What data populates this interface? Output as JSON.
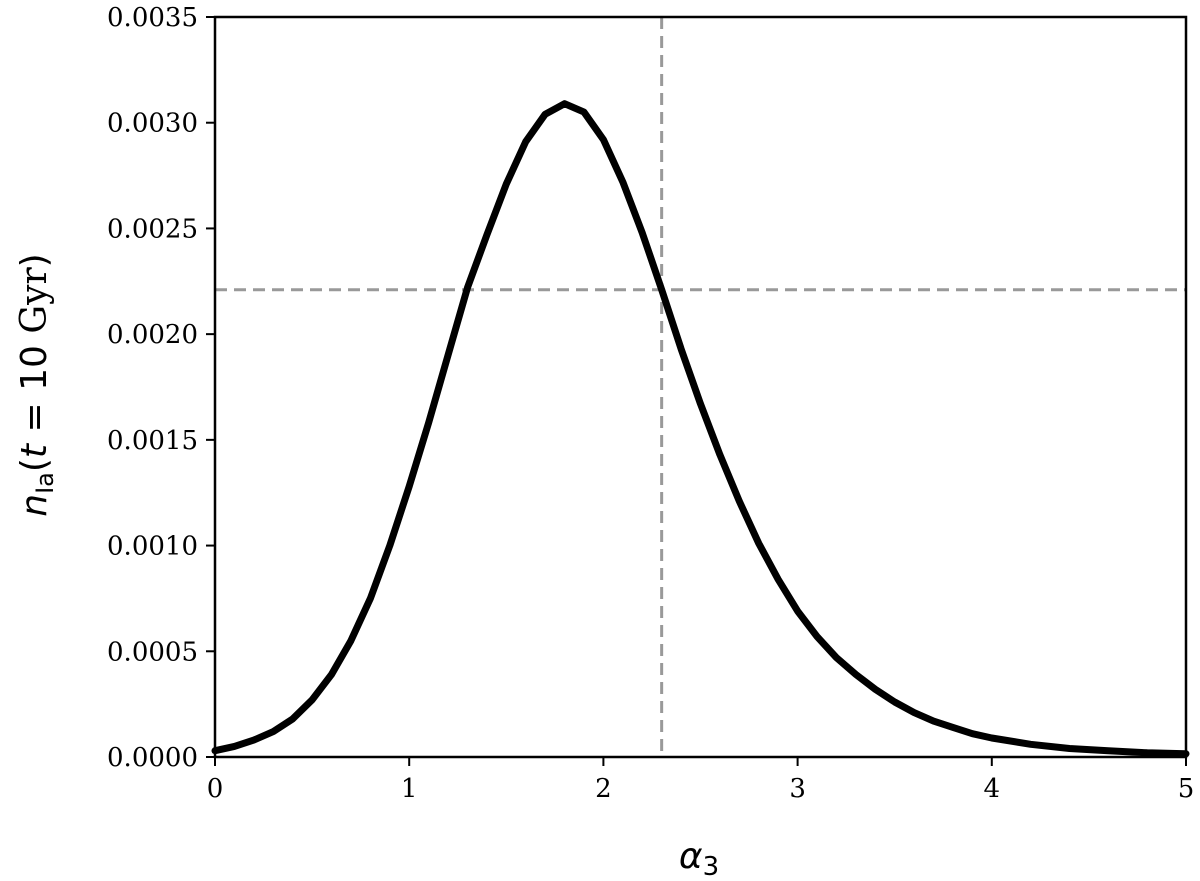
{
  "chart_data": {
    "type": "line",
    "title": "",
    "xlabel": {
      "base": "α",
      "sub": "3"
    },
    "ylabel": {
      "var": "n",
      "sub": "Ia",
      "open": "(",
      "t": "t",
      "eq": " = 10 ",
      "unit": "Gyr",
      "close": ")"
    },
    "xlim": [
      0,
      5
    ],
    "ylim": [
      0,
      0.0035
    ],
    "xticks": [
      0,
      1,
      2,
      3,
      4,
      5
    ],
    "xtick_labels": [
      "0",
      "1",
      "2",
      "3",
      "4",
      "5"
    ],
    "yticks": [
      0,
      0.0005,
      0.001,
      0.0015,
      0.002,
      0.0025,
      0.003,
      0.0035
    ],
    "ytick_labels": [
      "0.0000",
      "0.0005",
      "0.0010",
      "0.0015",
      "0.0020",
      "0.0025",
      "0.0030",
      "0.0035"
    ],
    "grid": false,
    "line_color": "#000000",
    "ref_color": "#999999",
    "reference_lines": {
      "vertical_x": 2.3,
      "horizontal_y": 0.00221
    },
    "series": [
      {
        "x": [
          0,
          0.1,
          0.2,
          0.3,
          0.4,
          0.5,
          0.6,
          0.7,
          0.8,
          0.9,
          1.0,
          1.1,
          1.2,
          1.3,
          1.4,
          1.5,
          1.6,
          1.7,
          1.8,
          1.9,
          2.0,
          2.1,
          2.2,
          2.3,
          2.4,
          2.5,
          2.6,
          2.7,
          2.8,
          2.9,
          3.0,
          3.1,
          3.2,
          3.3,
          3.4,
          3.5,
          3.6,
          3.7,
          3.8,
          3.9,
          4.0,
          4.2,
          4.4,
          4.6,
          4.8,
          5.0
        ],
        "y": [
          3e-05,
          5e-05,
          8e-05,
          0.00012,
          0.00018,
          0.00027,
          0.00039,
          0.00055,
          0.00075,
          0.001,
          0.00128,
          0.00158,
          0.0019,
          0.00222,
          0.00247,
          0.00271,
          0.00291,
          0.00304,
          0.00309,
          0.00305,
          0.00292,
          0.00272,
          0.00248,
          0.00221,
          0.00193,
          0.00167,
          0.00143,
          0.00121,
          0.00101,
          0.00084,
          0.00069,
          0.00057,
          0.00047,
          0.00039,
          0.00032,
          0.00026,
          0.00021,
          0.00017,
          0.00014,
          0.00011,
          9e-05,
          6e-05,
          4e-05,
          3e-05,
          2e-05,
          1.5e-05
        ]
      }
    ]
  }
}
